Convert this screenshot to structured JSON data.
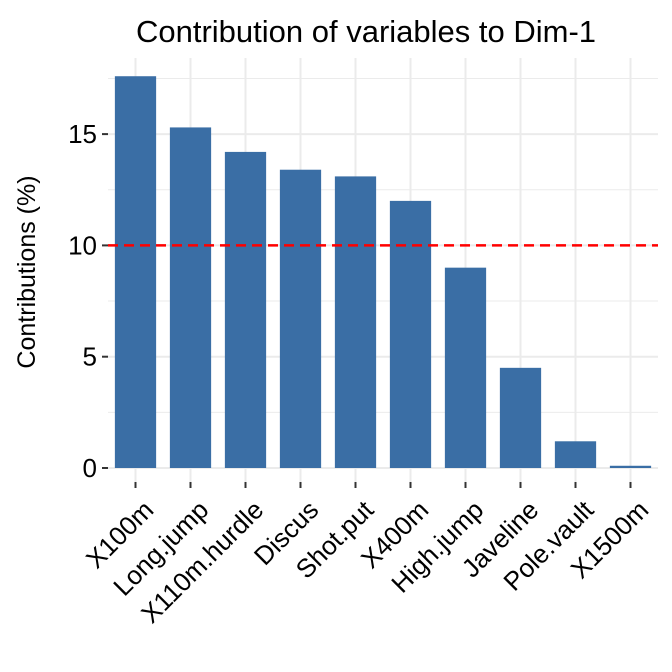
{
  "chart_data": {
    "type": "bar",
    "title": "Contribution of variables to Dim-1",
    "xlabel": "",
    "ylabel": "Contributions (%)",
    "categories": [
      "X100m",
      "Long.jump",
      "X110m.hurdle",
      "Discus",
      "Shot.put",
      "X400m",
      "High.jump",
      "Javeline",
      "Pole.vault",
      "X1500m"
    ],
    "values": [
      17.6,
      15.3,
      14.2,
      13.4,
      13.1,
      12.0,
      9.0,
      4.5,
      1.2,
      0.1
    ],
    "ylim": [
      0,
      17.6
    ],
    "yticks": [
      0,
      5,
      10,
      15
    ],
    "ytick_labels": [
      "0",
      "5",
      "10",
      "15"
    ],
    "reference_line": 10,
    "grid": true,
    "bar_color": "#3a6ea5",
    "reference_line_color": "#ff0000",
    "grid_color": "#ebebeb"
  }
}
